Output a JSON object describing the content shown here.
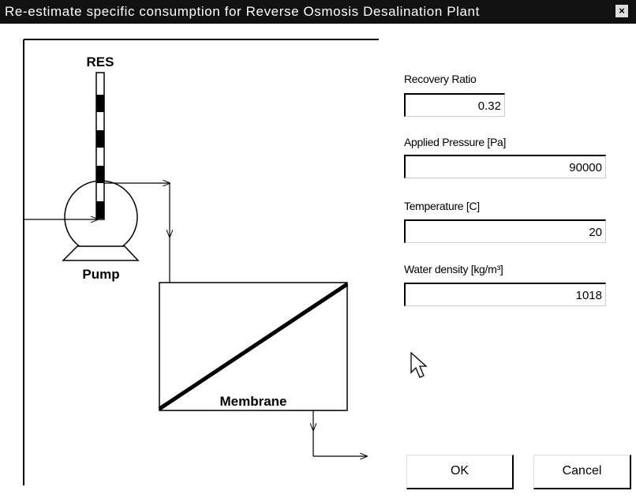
{
  "dialog": {
    "title": "Re-estimate specific consumption for Reverse Osmosis Desalination Plant",
    "diagram": {
      "reservoir": "RES",
      "pump": "Pump",
      "membrane": "Membrane"
    },
    "fields": [
      {
        "label": "Recovery Ratio",
        "value": 0.32
      },
      {
        "label": "Applied Pressure [Pa]",
        "value": 90000
      },
      {
        "label": "Temperature [C]",
        "value": 20
      },
      {
        "label": "Water density [kg/m³]",
        "value": 1018
      }
    ],
    "buttons": [
      "OK",
      "Cancel"
    ]
  }
}
